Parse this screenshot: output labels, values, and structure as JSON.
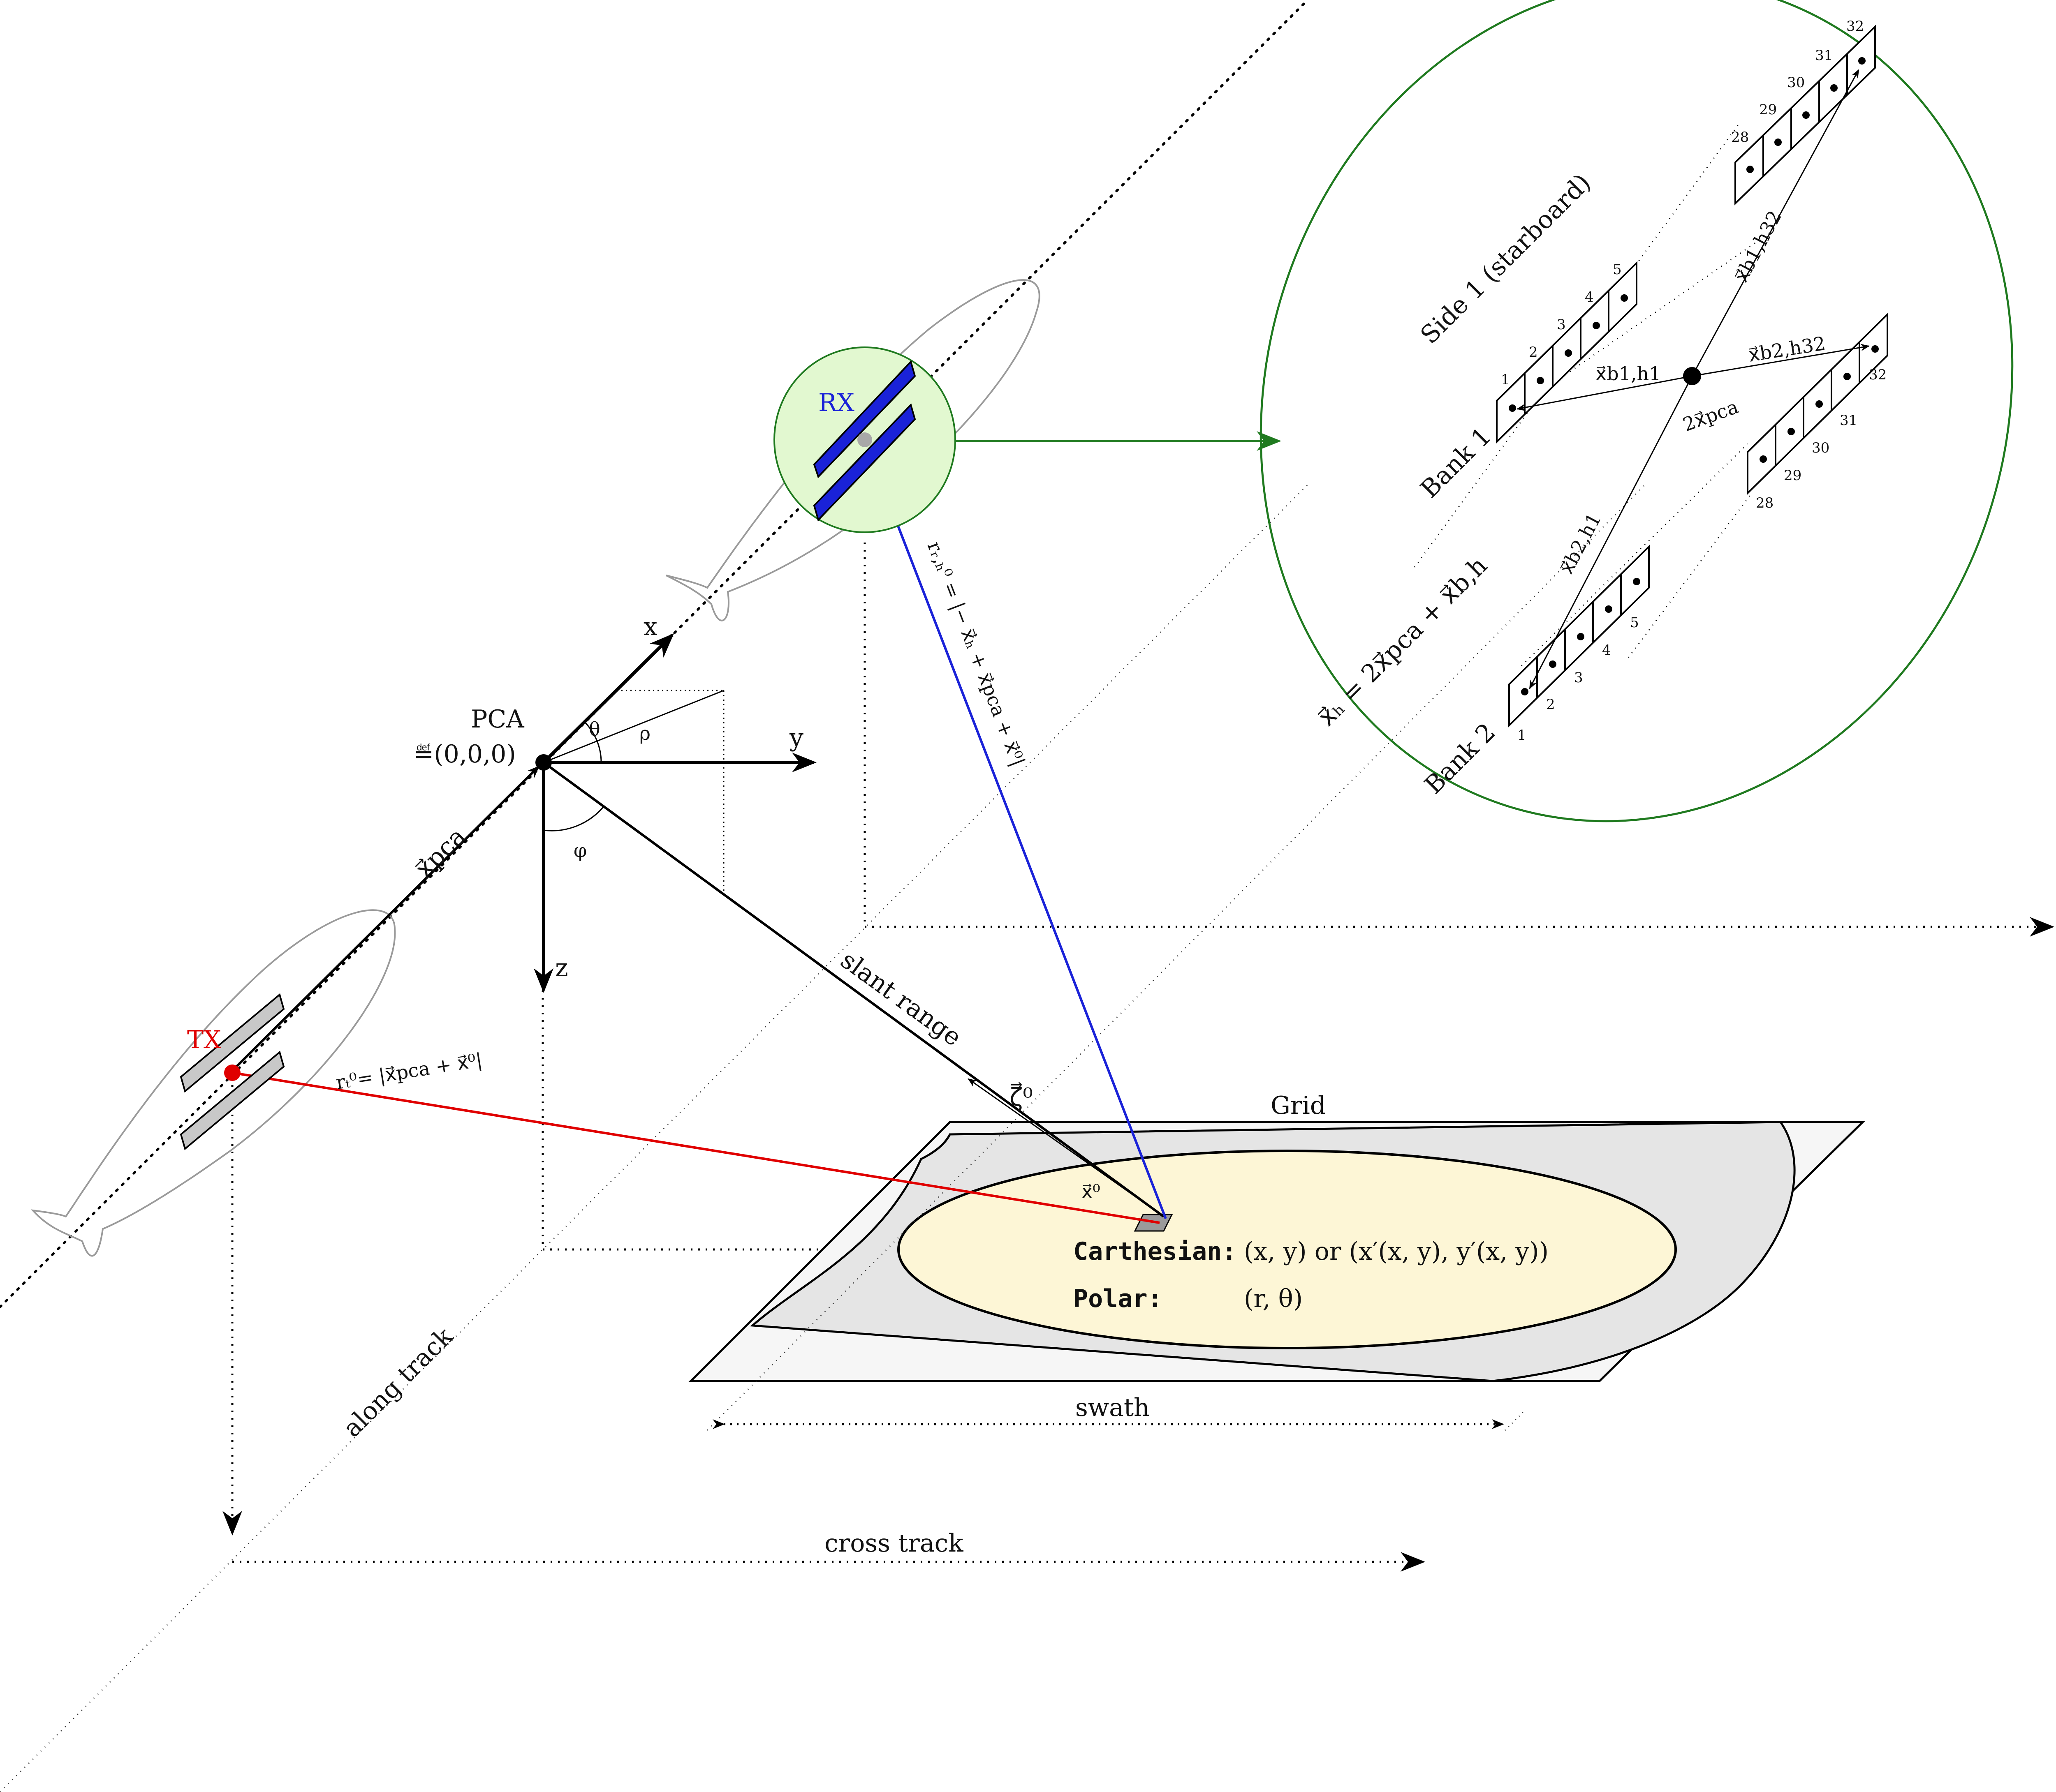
{
  "labels": {
    "pca": "PCA",
    "pca_def": "≝(0,0,0)",
    "tx": "TX",
    "rx": "RX",
    "axis_x": "x",
    "axis_y": "y",
    "axis_z": "z",
    "theta": "θ",
    "rho": "ρ",
    "phi": "φ",
    "x_pca": "x⃗pca",
    "r_tx": "rₜ⁰= |x⃗pca + x⃗⁰|",
    "r_rx": "rᵣ,ₕ⁰ = |− x⃗ₕ + x⃗pca + x⃗⁰|",
    "slant_range": "slant range",
    "zeta": "ζ⃗⁰",
    "x0": "x⃗⁰",
    "grid": "Grid",
    "swath": "swath",
    "cross_track": "cross track",
    "along_track": "along track",
    "carthesian": "Carthesian:",
    "carthesian_expr": "(x, y) or (x′(x, y), y′(x, y))",
    "polar": "Polar:",
    "polar_expr": "(r, θ)"
  },
  "inset": {
    "side": "Side 1 (starboard)",
    "bank1": "Bank 1",
    "bank2": "Bank 2",
    "xh_formula": "x⃗ₕ = 2x⃗pca + x⃗b,h",
    "center": "2x⃗pca",
    "v_b1h1": "x⃗b1,h1",
    "v_b1h32": "x⃗b1,h32",
    "v_b2h1": "x⃗b2,h1",
    "v_b2h32": "x⃗b2,h32",
    "b1_low": [
      "1",
      "2",
      "3",
      "4",
      "5"
    ],
    "b1_high": [
      "28",
      "29",
      "30",
      "31",
      "32"
    ],
    "b2_low": [
      "1",
      "2",
      "3",
      "4",
      "5"
    ],
    "b2_high": [
      "28",
      "29",
      "30",
      "31",
      "32"
    ]
  },
  "colors": {
    "tx": "#e00000",
    "rx": "#1a22d8",
    "rx_ray": "#1a22d8",
    "tx_ray": "#e00000",
    "inset": "#1f7a1f",
    "rx_halo": "#e2f8d0",
    "grid_outer": "#f6f6f6",
    "grid_inner": "#e5e5e5",
    "footprint": "#fdf6d6"
  }
}
